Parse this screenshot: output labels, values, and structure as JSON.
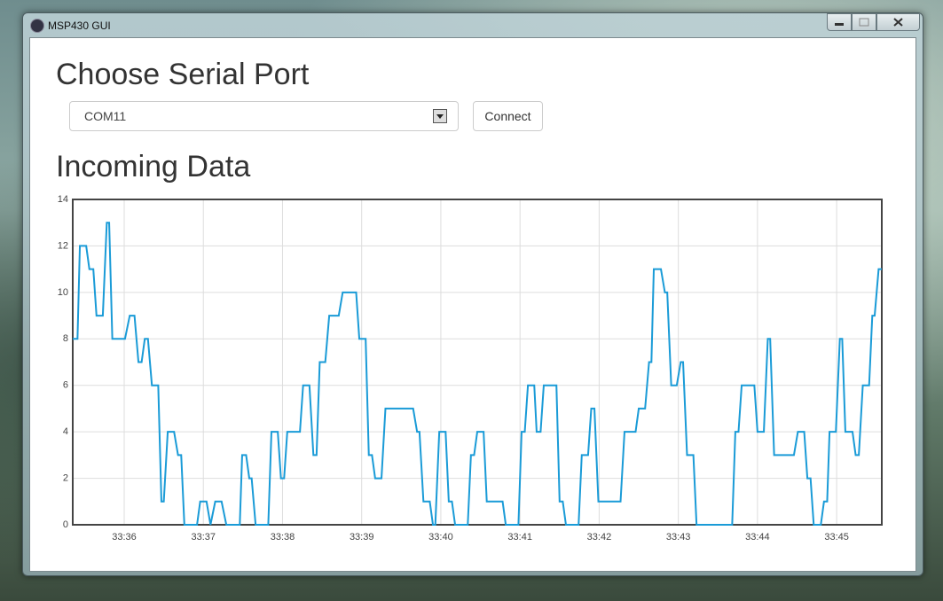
{
  "window": {
    "title": "MSP430 GUI"
  },
  "port_section": {
    "heading": "Choose Serial Port",
    "selected_port": "COM11",
    "button": "Connect"
  },
  "data_section": {
    "heading": "Incoming Data"
  },
  "chart_data": {
    "type": "line",
    "x": [
      35.35,
      35.41,
      35.44,
      35.52,
      35.56,
      35.61,
      35.65,
      35.73,
      35.78,
      35.81,
      35.85,
      36.01,
      36.07,
      36.13,
      36.18,
      36.22,
      36.26,
      36.3,
      36.35,
      36.43,
      36.47,
      36.5,
      36.55,
      36.63,
      36.68,
      36.72,
      36.76,
      36.92,
      36.96,
      37.04,
      37.09,
      37.15,
      37.23,
      37.29,
      37.46,
      37.49,
      37.54,
      37.58,
      37.61,
      37.66,
      37.82,
      37.86,
      37.94,
      37.98,
      38.02,
      38.06,
      38.22,
      38.26,
      38.34,
      38.39,
      38.43,
      38.47,
      38.54,
      38.59,
      38.71,
      38.76,
      38.93,
      38.97,
      39.05,
      39.09,
      39.13,
      39.17,
      39.25,
      39.3,
      39.65,
      39.7,
      39.73,
      39.78,
      39.86,
      39.9,
      39.93,
      39.98,
      40.06,
      40.1,
      40.14,
      40.18,
      40.34,
      40.38,
      40.42,
      40.46,
      40.54,
      40.58,
      40.78,
      40.82,
      40.98,
      41.02,
      41.06,
      41.1,
      41.18,
      41.21,
      41.26,
      41.3,
      41.46,
      41.5,
      41.54,
      41.58,
      41.74,
      41.78,
      41.86,
      41.9,
      41.94,
      41.99,
      42.27,
      42.32,
      42.46,
      42.5,
      42.58,
      42.63,
      42.66,
      42.69,
      42.78,
      42.83,
      42.86,
      42.91,
      42.98,
      43.03,
      43.06,
      43.11,
      43.19,
      43.23,
      43.68,
      43.72,
      43.76,
      43.8,
      43.96,
      44.0,
      44.08,
      44.13,
      44.16,
      44.21,
      44.46,
      44.51,
      44.59,
      44.63,
      44.67,
      44.71,
      44.8,
      44.84,
      44.88,
      44.91,
      44.99,
      45.04,
      45.07,
      45.11,
      45.2,
      45.24,
      45.28,
      45.33,
      45.41,
      45.45,
      45.48,
      45.53,
      45.57
    ],
    "values": [
      8,
      8,
      12,
      12,
      11,
      11,
      9,
      9,
      13,
      13,
      8,
      8,
      9,
      9,
      7,
      7,
      8,
      8,
      6,
      6,
      1,
      1,
      4,
      4,
      3,
      3,
      0,
      0,
      1,
      1,
      0,
      1,
      1,
      0,
      0,
      3,
      3,
      2,
      2,
      0,
      0,
      4,
      4,
      2,
      2,
      4,
      4,
      6,
      6,
      3,
      3,
      7,
      7,
      9,
      9,
      10,
      10,
      8,
      8,
      3,
      3,
      2,
      2,
      5,
      5,
      4,
      4,
      1,
      1,
      0,
      0,
      4,
      4,
      1,
      1,
      0,
      0,
      3,
      3,
      4,
      4,
      1,
      1,
      0,
      0,
      4,
      4,
      6,
      6,
      4,
      4,
      6,
      6,
      1,
      1,
      0,
      0,
      3,
      3,
      5,
      5,
      1,
      1,
      4,
      4,
      5,
      5,
      7,
      7,
      11,
      11,
      10,
      10,
      6,
      6,
      7,
      7,
      3,
      3,
      0,
      0,
      4,
      4,
      6,
      6,
      4,
      4,
      8,
      8,
      3,
      3,
      4,
      4,
      2,
      2,
      0,
      0,
      1,
      1,
      4,
      4,
      8,
      8,
      4,
      4,
      3,
      3,
      6,
      6,
      9,
      9,
      11,
      11
    ],
    "color": "#1a9bd7",
    "xlim": [
      35.35,
      45.57
    ],
    "xticks": [
      {
        "value": 36,
        "label": "33:36"
      },
      {
        "value": 37,
        "label": "33:37"
      },
      {
        "value": 38,
        "label": "33:38"
      },
      {
        "value": 39,
        "label": "33:39"
      },
      {
        "value": 40,
        "label": "33:40"
      },
      {
        "value": 41,
        "label": "33:41"
      },
      {
        "value": 42,
        "label": "33:42"
      },
      {
        "value": 43,
        "label": "33:43"
      },
      {
        "value": 44,
        "label": "33:44"
      },
      {
        "value": 45,
        "label": "33:45"
      }
    ],
    "ylim": [
      0,
      14
    ],
    "yticks": [
      0,
      2,
      4,
      6,
      8,
      10,
      12,
      14
    ],
    "grid": true
  }
}
